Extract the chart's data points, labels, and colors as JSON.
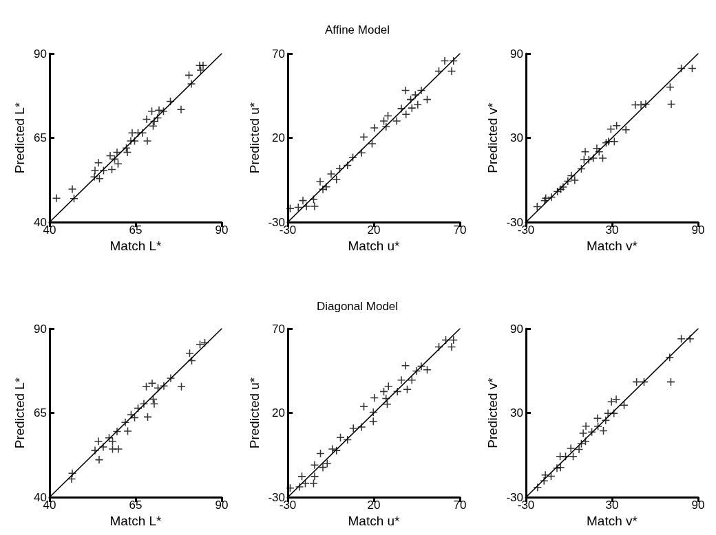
{
  "chart_data": [
    {
      "type": "scatter",
      "xlabel": "Match L*",
      "ylabel": "Predicted L*",
      "xlim": [
        40,
        90
      ],
      "ylim": [
        40,
        90
      ],
      "xticks": [
        40,
        65,
        90
      ],
      "yticks": [
        40,
        65,
        90
      ],
      "grid": false,
      "line_style": "solid",
      "series": [
        {
          "type": "scatter",
          "marker": "cross",
          "color": "#000000",
          "x": [
            42.0,
            46.6,
            47.1,
            53.0,
            54.2,
            53.2,
            54.5,
            55.7,
            57.6,
            58.1,
            58.9,
            59.6,
            59.9,
            62.6,
            62.3,
            64.0,
            63.6,
            64.7,
            65.7,
            67.0,
            68.4,
            68.2,
            70.1,
            70.4,
            69.7,
            71.8,
            73.1,
            71.4,
            75.1,
            78.2,
            80.5,
            81.2,
            83.6,
            84.6,
            83.9
          ],
          "values": [
            47.1,
            49.8,
            47.0,
            53.4,
            57.6,
            55.3,
            52.9,
            55.3,
            59.7,
            55.6,
            58.7,
            60.7,
            57.3,
            60.7,
            62.0,
            66.5,
            64.1,
            64.1,
            66.5,
            66.5,
            64.1,
            70.5,
            68.5,
            69.9,
            72.9,
            73.2,
            72.9,
            70.9,
            75.8,
            73.4,
            83.6,
            81.0,
            86.5,
            86.5,
            85.1
          ]
        },
        {
          "type": "line",
          "marker": "none",
          "color": "#000000",
          "x": [
            40,
            90
          ],
          "values": [
            40,
            90
          ]
        }
      ]
    },
    {
      "type": "scatter",
      "title": "Affine Model",
      "xlabel": "Match u*",
      "ylabel": "Predicted u*",
      "xlim": [
        -30,
        70
      ],
      "ylim": [
        -30,
        70
      ],
      "xticks": [
        -30,
        20,
        70
      ],
      "yticks": [
        -30,
        20,
        70
      ],
      "grid": false,
      "line_style": "solid",
      "series": [
        {
          "type": "scatter",
          "marker": "cross",
          "color": "#000000",
          "x": [
            -28.6,
            -23.9,
            -21.2,
            -19.1,
            -15.0,
            -14.4,
            -11.2,
            -9.6,
            -7.6,
            -4.8,
            -1.7,
            0.2,
            4.7,
            7.8,
            12.9,
            14.2,
            19.0,
            20.3,
            25.8,
            27.1,
            28.2,
            33.3,
            36.0,
            38.7,
            38.4,
            42.1,
            41.4,
            44.1,
            45.5,
            47.6,
            51.0,
            57.8,
            61.2,
            65.2,
            66.3
          ],
          "values": [
            -21.9,
            -21.2,
            -17.2,
            -20.6,
            -16.5,
            -20.6,
            -6.0,
            -10.5,
            -9.1,
            -1.4,
            -4.7,
            1.7,
            3.7,
            8.4,
            11.1,
            20.5,
            16.5,
            25.9,
            30.0,
            26.6,
            33.1,
            30.0,
            37.4,
            34.0,
            48.2,
            37.7,
            42.8,
            45.5,
            39.7,
            48.2,
            42.8,
            59.6,
            65.7,
            59.6,
            65.7
          ]
        },
        {
          "type": "line",
          "marker": "none",
          "color": "#000000",
          "x": [
            -30,
            70
          ],
          "values": [
            -30,
            70
          ]
        }
      ]
    },
    {
      "type": "scatter",
      "xlabel": "Match v*",
      "ylabel": "Predicted v*",
      "xlim": [
        -30,
        90
      ],
      "ylim": [
        -30,
        90
      ],
      "xticks": [
        -30,
        30,
        90
      ],
      "yticks": [
        -30,
        30,
        90
      ],
      "grid": false,
      "line_style": "solid",
      "series": [
        {
          "type": "scatter",
          "marker": "cross",
          "color": "#000000",
          "x": [
            -22.2,
            -17.0,
            -16.2,
            -12.2,
            -8.1,
            -5.7,
            -4.1,
            -0.8,
            1.6,
            4.0,
            8.6,
            10.5,
            11.3,
            13.8,
            17.0,
            19.4,
            21.0,
            23.5,
            25.9,
            27.5,
            31.6,
            29.2,
            33.2,
            39.7,
            46.2,
            50.2,
            53.5,
            70.5,
            71.3,
            78.3,
            85.9
          ],
          "values": [
            -19.0,
            -14.7,
            -13.0,
            -12.2,
            -8.2,
            -6.6,
            -5.0,
            -0.9,
            3.1,
            -0.1,
            8.0,
            14.4,
            20.1,
            14.4,
            15.6,
            22.5,
            20.1,
            15.6,
            26.5,
            27.4,
            27.4,
            36.2,
            38.7,
            35.8,
            53.5,
            53.5,
            54.0,
            66.1,
            54.0,
            79.5,
            79.5
          ]
        },
        {
          "type": "line",
          "marker": "none",
          "color": "#000000",
          "x": [
            -30,
            90
          ],
          "values": [
            -30,
            90
          ]
        }
      ]
    },
    {
      "type": "scatter",
      "xlabel": "Match L*",
      "ylabel": "Predicted L*",
      "xlim": [
        40,
        90
      ],
      "ylim": [
        40,
        90
      ],
      "xticks": [
        40,
        65,
        90
      ],
      "yticks": [
        40,
        65,
        90
      ],
      "grid": false,
      "line_style": "solid",
      "series": [
        {
          "type": "scatter",
          "marker": "cross",
          "color": "#000000",
          "x": [
            46.6,
            46.4,
            53.2,
            54.2,
            54.4,
            55.6,
            57.3,
            58.3,
            58.3,
            60.0,
            59.6,
            62.7,
            62.0,
            63.7,
            64.7,
            65.7,
            68.5,
            67.4,
            68.1,
            69.8,
            70.1,
            70.4,
            71.5,
            73.2,
            75.2,
            78.3,
            80.7,
            81.3,
            83.7,
            85.1
          ],
          "values": [
            47.1,
            45.4,
            53.9,
            56.6,
            51.1,
            54.9,
            57.6,
            56.6,
            54.3,
            54.3,
            59.5,
            59.6,
            62.2,
            64.5,
            63.6,
            66.4,
            63.8,
            67.7,
            72.8,
            73.8,
            69.1,
            67.7,
            72.4,
            73.0,
            75.3,
            72.8,
            82.7,
            80.5,
            85.3,
            85.8
          ]
        },
        {
          "type": "line",
          "marker": "none",
          "color": "#000000",
          "x": [
            40,
            90
          ],
          "values": [
            40,
            90
          ]
        }
      ]
    },
    {
      "type": "scatter",
      "title": "Diagonal Model",
      "xlabel": "Match u*",
      "ylabel": "Predicted u*",
      "xlim": [
        -30,
        70
      ],
      "ylim": [
        -30,
        70
      ],
      "xticks": [
        -30,
        20,
        70
      ],
      "yticks": [
        -30,
        20,
        70
      ],
      "grid": false,
      "line_style": "solid",
      "series": [
        {
          "type": "scatter",
          "marker": "cross",
          "color": "#000000",
          "x": [
            -28.6,
            -23.2,
            -21.8,
            -19.8,
            -15.0,
            -14.4,
            -14.4,
            -11.0,
            -9.6,
            -7.1,
            -4.1,
            -1.7,
            0.6,
            4.7,
            8.1,
            12.9,
            14.2,
            19.7,
            19.7,
            20.3,
            25.8,
            27.1,
            27.8,
            28.5,
            33.7,
            36.0,
            39.4,
            38.4,
            42.1,
            44.8,
            47.6,
            51.0,
            57.8,
            61.8,
            65.2,
            66.3
          ],
          "values": [
            -24.6,
            -23.9,
            -17.7,
            -21.8,
            -21.8,
            -17.7,
            -10.9,
            -4.1,
            -12.3,
            -10.0,
            -1.4,
            -2.3,
            5.4,
            4.1,
            10.9,
            11.6,
            23.8,
            20.4,
            15.0,
            29.0,
            32.7,
            28.6,
            25.2,
            35.8,
            32.7,
            39.5,
            34.0,
            48.1,
            39.5,
            44.9,
            47.7,
            45.6,
            59.2,
            63.3,
            59.2,
            63.3
          ]
        },
        {
          "type": "line",
          "marker": "none",
          "color": "#000000",
          "x": [
            -30,
            70
          ],
          "values": [
            -30,
            70
          ]
        }
      ]
    },
    {
      "type": "scatter",
      "xlabel": "Match v*",
      "ylabel": "Predicted v*",
      "xlim": [
        -30,
        90
      ],
      "ylim": [
        -30,
        90
      ],
      "xticks": [
        -30,
        30,
        90
      ],
      "yticks": [
        -30,
        30,
        90
      ],
      "grid": false,
      "line_style": "solid",
      "series": [
        {
          "type": "scatter",
          "marker": "cross",
          "color": "#000000",
          "x": [
            -21.9,
            -17.4,
            -16.5,
            -12.5,
            -8.4,
            -5.9,
            -6.2,
            -2.4,
            1.3,
            2.9,
            7.0,
            8.6,
            11.5,
            9.9,
            11.8,
            15.9,
            19.9,
            20.2,
            24.0,
            25.6,
            27.2,
            31.3,
            29.6,
            32.9,
            38.4,
            47.1,
            52.3,
            70.2,
            71.0,
            78.3,
            84.4
          ],
          "values": [
            -23.0,
            -18.4,
            -14.2,
            -15.1,
            -9.3,
            -8.8,
            -1.0,
            -1.0,
            4.8,
            -1.0,
            4.0,
            8.1,
            9.8,
            15.6,
            20.6,
            16.4,
            26.2,
            20.4,
            17.3,
            24.7,
            29.7,
            29.7,
            38.0,
            39.7,
            35.5,
            52.1,
            52.1,
            69.5,
            52.1,
            82.8,
            82.8
          ]
        },
        {
          "type": "line",
          "marker": "none",
          "color": "#000000",
          "x": [
            -30,
            90
          ],
          "values": [
            -30,
            90
          ]
        }
      ]
    }
  ]
}
